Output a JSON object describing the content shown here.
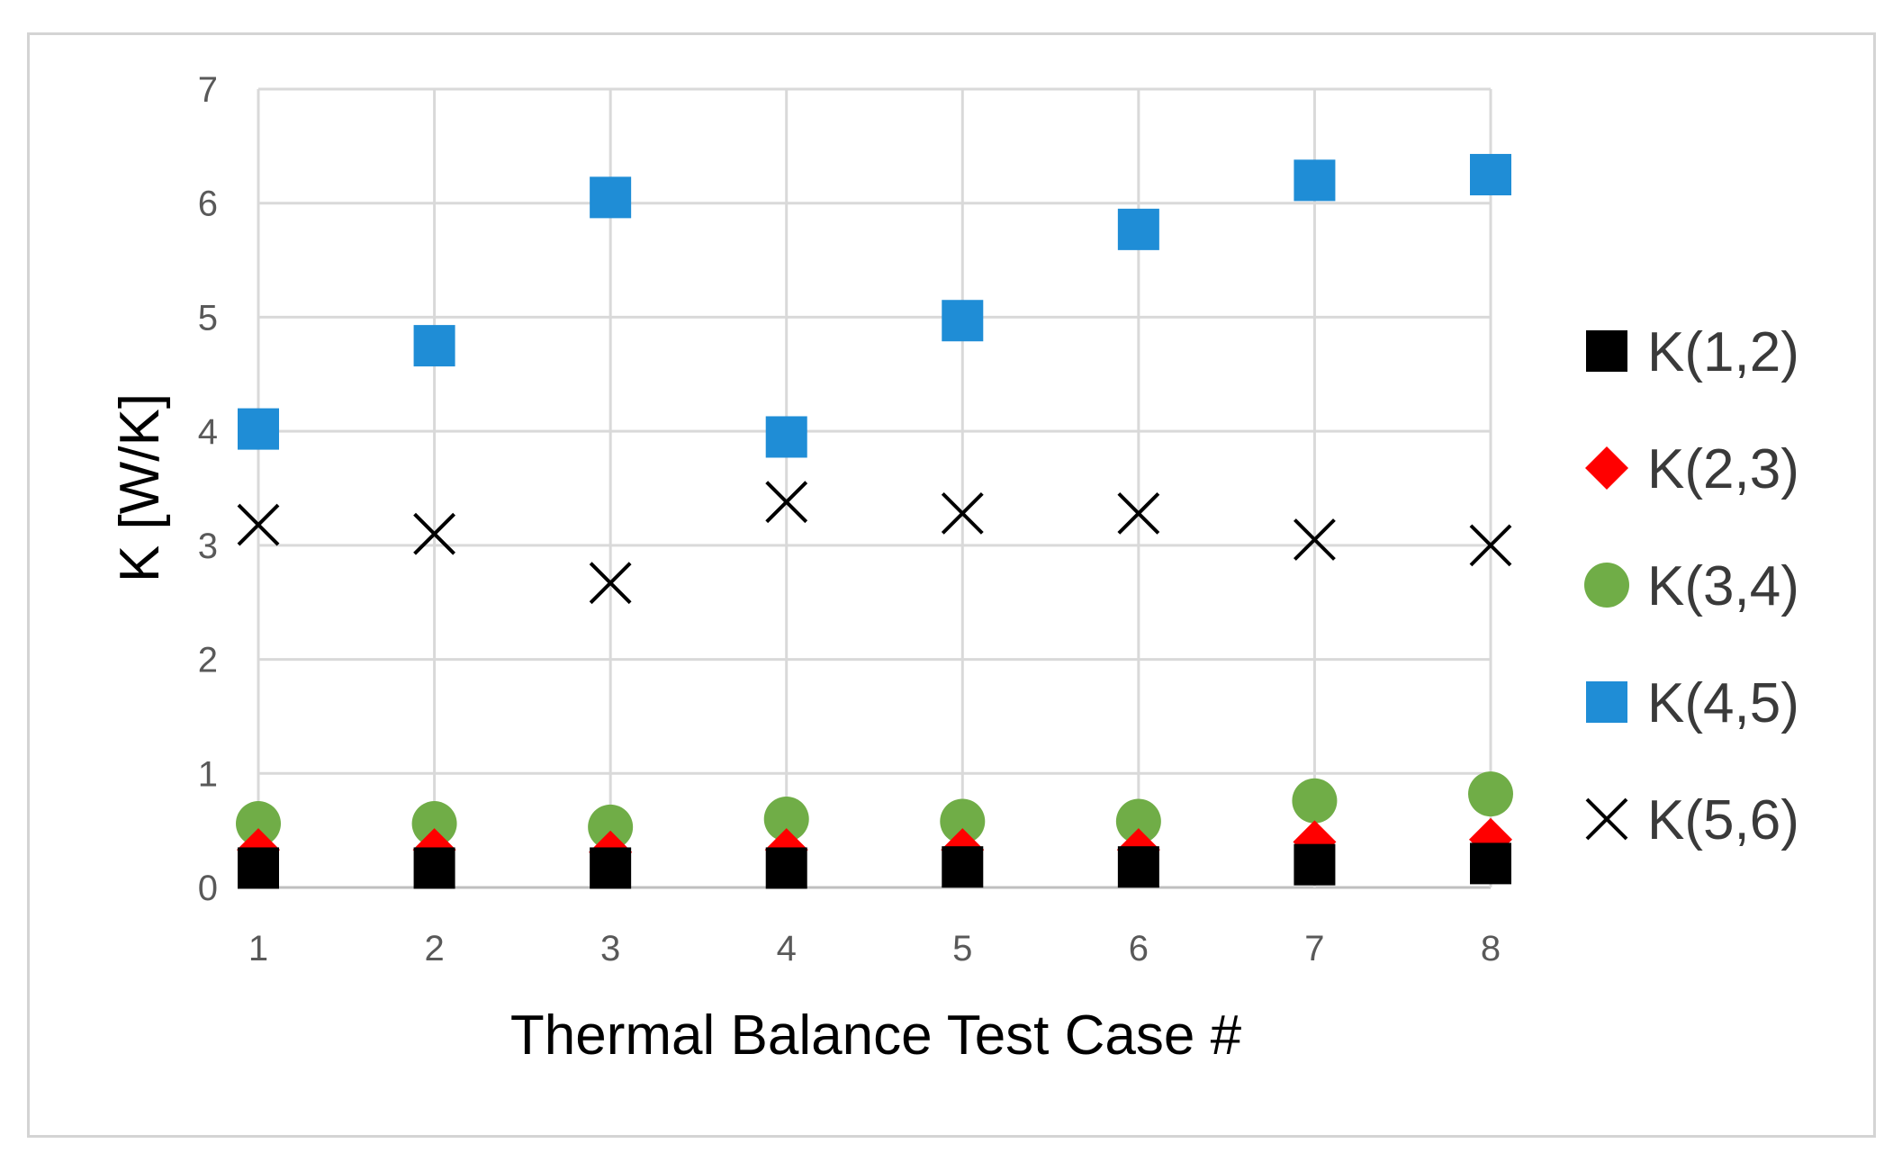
{
  "chart_data": {
    "type": "scatter",
    "title": "",
    "xlabel": "Thermal Balance Test Case #",
    "ylabel": "K [W/K]",
    "x": [
      1,
      2,
      3,
      4,
      5,
      6,
      7,
      8
    ],
    "xlim": [
      1,
      8
    ],
    "ylim": [
      0,
      7
    ],
    "yticks": [
      0,
      1,
      2,
      3,
      4,
      5,
      6,
      7
    ],
    "grid": true,
    "legend_position": "right",
    "series": [
      {
        "name": "K(1,2)",
        "marker": "square",
        "color": "#000000",
        "values": [
          0.17,
          0.17,
          0.17,
          0.17,
          0.18,
          0.18,
          0.2,
          0.21
        ]
      },
      {
        "name": "K(2,3)",
        "marker": "diamond",
        "color": "#ff0000",
        "values": [
          0.33,
          0.33,
          0.31,
          0.33,
          0.33,
          0.33,
          0.4,
          0.42
        ]
      },
      {
        "name": "K(3,4)",
        "marker": "circle",
        "color": "#70ad47",
        "values": [
          0.56,
          0.56,
          0.53,
          0.6,
          0.58,
          0.58,
          0.76,
          0.82
        ]
      },
      {
        "name": "K(4,5)",
        "marker": "square",
        "color": "#1f8dd6",
        "values": [
          4.02,
          4.75,
          6.05,
          3.95,
          4.97,
          5.77,
          6.2,
          6.25
        ]
      },
      {
        "name": "K(5,6)",
        "marker": "x",
        "color": "#000000",
        "values": [
          3.18,
          3.1,
          2.67,
          3.38,
          3.28,
          3.28,
          3.05,
          3.0
        ]
      }
    ]
  }
}
